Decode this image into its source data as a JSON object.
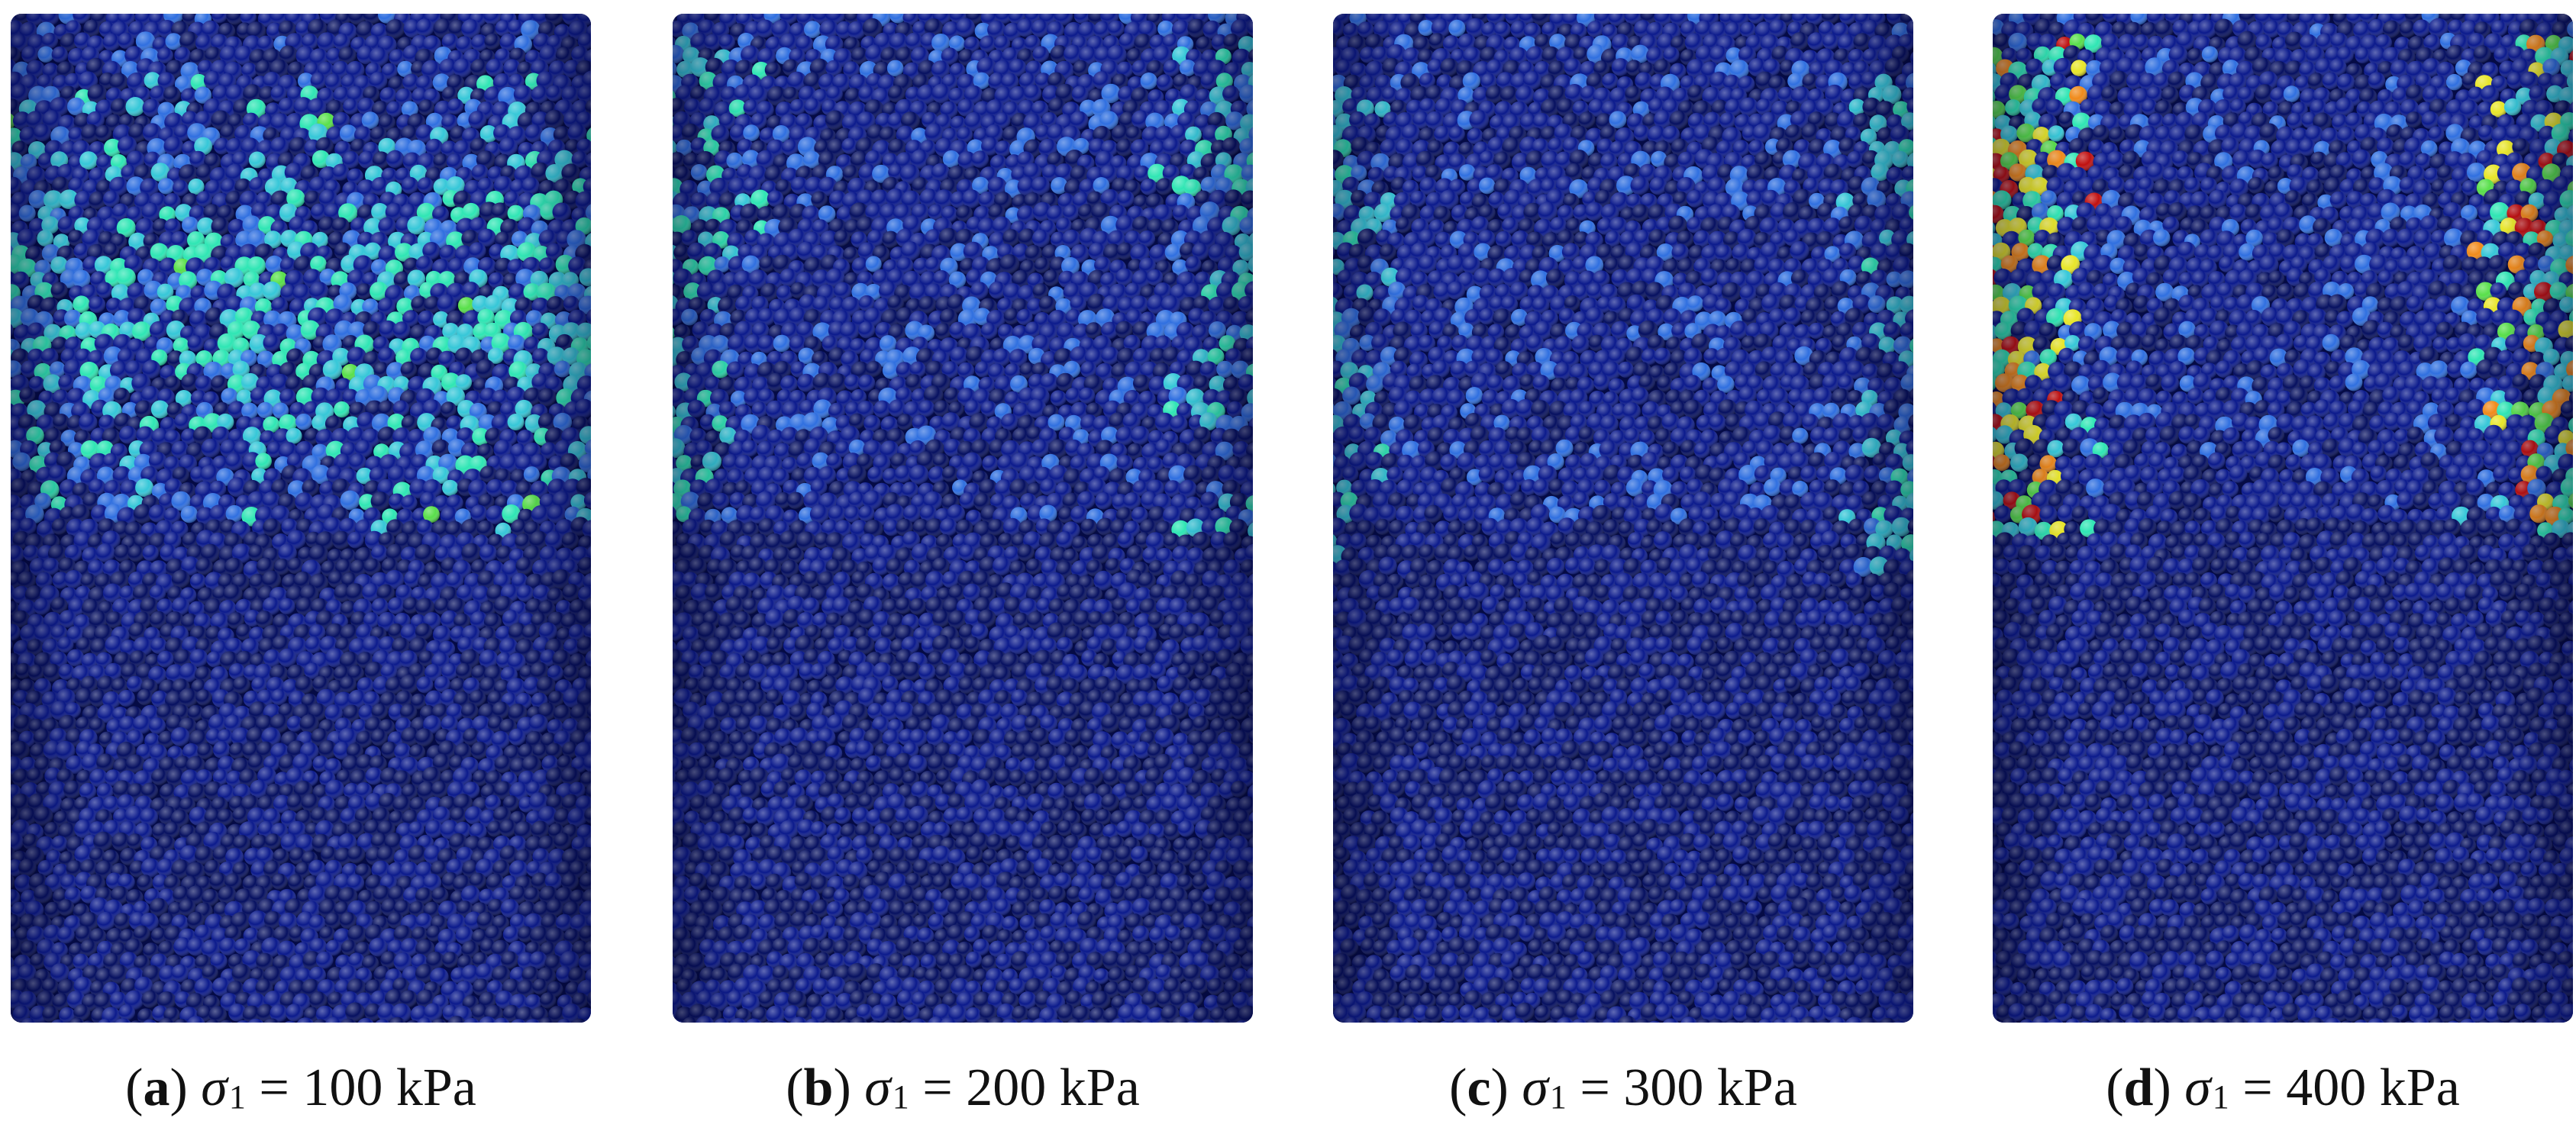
{
  "panels": [
    {
      "id": "a",
      "label": "a",
      "symbol": "σ",
      "subscript": "1",
      "equals": "=",
      "value": "100 kPa",
      "highlight_pattern": "upper-half scattered"
    },
    {
      "id": "b",
      "label": "b",
      "symbol": "σ",
      "subscript": "1",
      "equals": "=",
      "value": "200 kPa",
      "highlight_pattern": "upper-side bands"
    },
    {
      "id": "c",
      "label": "c",
      "symbol": "σ",
      "subscript": "1",
      "equals": "=",
      "value": "300 kPa",
      "highlight_pattern": "narrow side bands"
    },
    {
      "id": "d",
      "label": "d",
      "symbol": "σ",
      "subscript": "1",
      "equals": "=",
      "value": "400 kPa",
      "highlight_pattern": "strong side bands"
    }
  ],
  "colors": {
    "base_particle": "#0b1a8c",
    "dark_particle": "#061060",
    "light_blue": "#2f6fe0",
    "cyan": "#35c7d8",
    "teal": "#2ee6b4",
    "green": "#58e04a",
    "yellow": "#e8e628",
    "orange": "#f08a1a",
    "red": "#c01010"
  }
}
